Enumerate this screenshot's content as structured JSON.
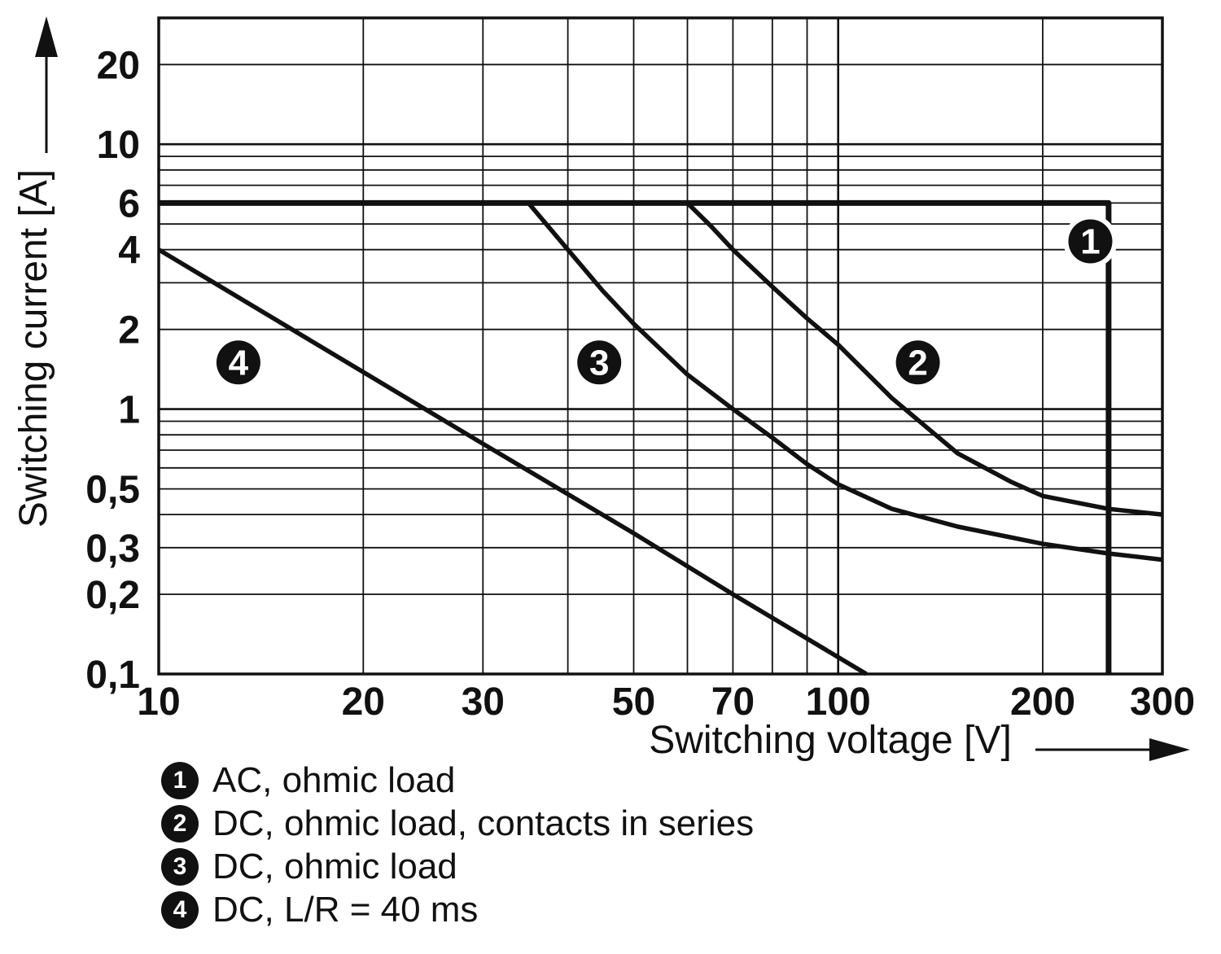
{
  "chart_data": {
    "type": "line",
    "title": "",
    "xlabel": "Switching voltage [V]",
    "ylabel": "Switching current [A]",
    "x_scale": "log",
    "y_scale": "log",
    "xlim": [
      10,
      300
    ],
    "ylim": [
      0.1,
      30
    ],
    "grid": true,
    "x_ticks": [
      {
        "v": 10,
        "label": "10"
      },
      {
        "v": 20,
        "label": "20"
      },
      {
        "v": 30,
        "label": "30"
      },
      {
        "v": 50,
        "label": "50"
      },
      {
        "v": 70,
        "label": "70"
      },
      {
        "v": 100,
        "label": "100"
      },
      {
        "v": 200,
        "label": "200"
      },
      {
        "v": 300,
        "label": "300"
      }
    ],
    "y_ticks": [
      {
        "v": 20,
        "label": "20"
      },
      {
        "v": 10,
        "label": "10"
      },
      {
        "v": 6,
        "label": "6"
      },
      {
        "v": 4,
        "label": "4"
      },
      {
        "v": 2,
        "label": "2"
      },
      {
        "v": 1,
        "label": "1"
      },
      {
        "v": 0.5,
        "label": "0,5"
      },
      {
        "v": 0.3,
        "label": "0,3"
      },
      {
        "v": 0.2,
        "label": "0,2"
      },
      {
        "v": 0.1,
        "label": "0,1"
      }
    ],
    "series": [
      {
        "id": 1,
        "name": "AC, ohmic load",
        "width": 7,
        "points": [
          [
            10,
            6
          ],
          [
            250,
            6
          ],
          [
            250,
            0.1
          ]
        ]
      },
      {
        "id": 2,
        "name": "DC, ohmic load, contacts in series",
        "width": 5.5,
        "points": [
          [
            60,
            6
          ],
          [
            65,
            4.9
          ],
          [
            70,
            4
          ],
          [
            80,
            2.9
          ],
          [
            90,
            2.2
          ],
          [
            100,
            1.75
          ],
          [
            120,
            1.1
          ],
          [
            150,
            0.68
          ],
          [
            180,
            0.53
          ],
          [
            200,
            0.47
          ],
          [
            250,
            0.42
          ],
          [
            300,
            0.4
          ]
        ]
      },
      {
        "id": 3,
        "name": "DC, ohmic load",
        "width": 5.5,
        "points": [
          [
            35,
            6
          ],
          [
            40,
            4
          ],
          [
            45,
            2.8
          ],
          [
            50,
            2.1
          ],
          [
            60,
            1.35
          ],
          [
            70,
            1.0
          ],
          [
            80,
            0.78
          ],
          [
            90,
            0.62
          ],
          [
            100,
            0.52
          ],
          [
            120,
            0.42
          ],
          [
            150,
            0.36
          ],
          [
            200,
            0.31
          ],
          [
            250,
            0.285
          ],
          [
            300,
            0.27
          ]
        ]
      },
      {
        "id": 4,
        "name": "DC, L/R = 40 ms",
        "width": 5.5,
        "points": [
          [
            10,
            4
          ],
          [
            20,
            1.38
          ],
          [
            30,
            0.74
          ],
          [
            50,
            0.34
          ],
          [
            70,
            0.2
          ],
          [
            110,
            0.1
          ]
        ]
      }
    ],
    "markers": [
      {
        "num": "1",
        "x": 235,
        "y": 4.3
      },
      {
        "num": "2",
        "x": 131,
        "y": 1.5
      },
      {
        "num": "3",
        "x": 44.5,
        "y": 1.5
      },
      {
        "num": "4",
        "x": 13.1,
        "y": 1.5
      }
    ]
  },
  "legend": {
    "items": [
      {
        "num": "1",
        "label": "AC, ohmic load"
      },
      {
        "num": "2",
        "label": "DC, ohmic load, contacts in series"
      },
      {
        "num": "3",
        "label": "DC, ohmic load"
      },
      {
        "num": "4",
        "label": "DC, L/R = 40 ms"
      }
    ]
  },
  "colors": {
    "line": "#111111",
    "grid": "#111111",
    "background": "#ffffff"
  }
}
